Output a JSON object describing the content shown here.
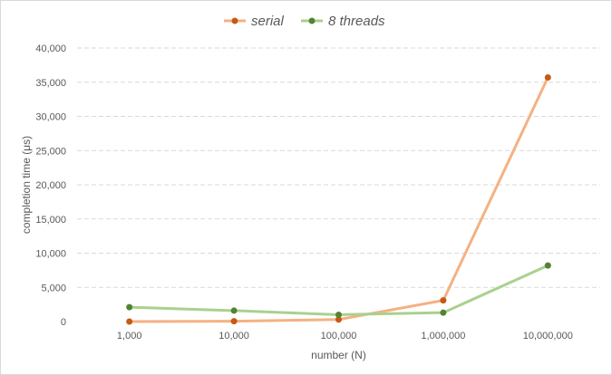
{
  "chart_data": {
    "type": "line",
    "categories": [
      "1,000",
      "10,000",
      "100,000",
      "1,000,000",
      "10,000,000"
    ],
    "series": [
      {
        "name": "serial",
        "values": [
          0,
          50,
          300,
          3100,
          35700
        ],
        "color": "#f4b183",
        "marker_color": "#c55a11"
      },
      {
        "name": "8 threads",
        "values": [
          2100,
          1600,
          1000,
          1300,
          8200
        ],
        "color": "#a9d18e",
        "marker_color": "#548235"
      }
    ],
    "ylim": [
      0,
      40000
    ],
    "yticks": [
      "0",
      "5,000",
      "10,000",
      "15,000",
      "20,000",
      "25,000",
      "30,000",
      "35,000",
      "40,000"
    ],
    "ytick_values": [
      0,
      5000,
      10000,
      15000,
      20000,
      25000,
      30000,
      35000,
      40000
    ],
    "xlabel": "number (N)",
    "ylabel": "completion time (μs)",
    "grid": true,
    "grid_color": "#d9d9d9",
    "legend": "top-center"
  }
}
